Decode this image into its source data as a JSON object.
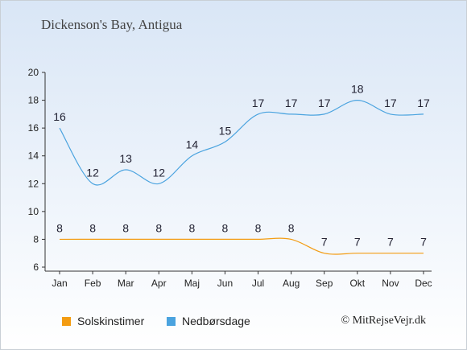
{
  "chart_data": {
    "type": "line",
    "title": "Dickenson's Bay, Antigua",
    "categories": [
      "Jan",
      "Feb",
      "Mar",
      "Apr",
      "Maj",
      "Jun",
      "Jul",
      "Aug",
      "Sep",
      "Okt",
      "Nov",
      "Dec"
    ],
    "series": [
      {
        "name": "Solskinstimer",
        "color": "#f39c12",
        "values": [
          8,
          8,
          8,
          8,
          8,
          8,
          8,
          8,
          7,
          7,
          7,
          7
        ]
      },
      {
        "name": "Nedbørsdage",
        "color": "#4aa3df",
        "values": [
          16,
          12,
          13,
          12,
          14,
          15,
          17,
          17,
          17,
          18,
          17,
          17
        ]
      }
    ],
    "ylim": [
      6,
      20
    ],
    "yticks": [
      6,
      8,
      10,
      12,
      14,
      16,
      18,
      20
    ],
    "grid": false,
    "legend": "bottom"
  },
  "credit": "© MitRejseVejr.dk"
}
